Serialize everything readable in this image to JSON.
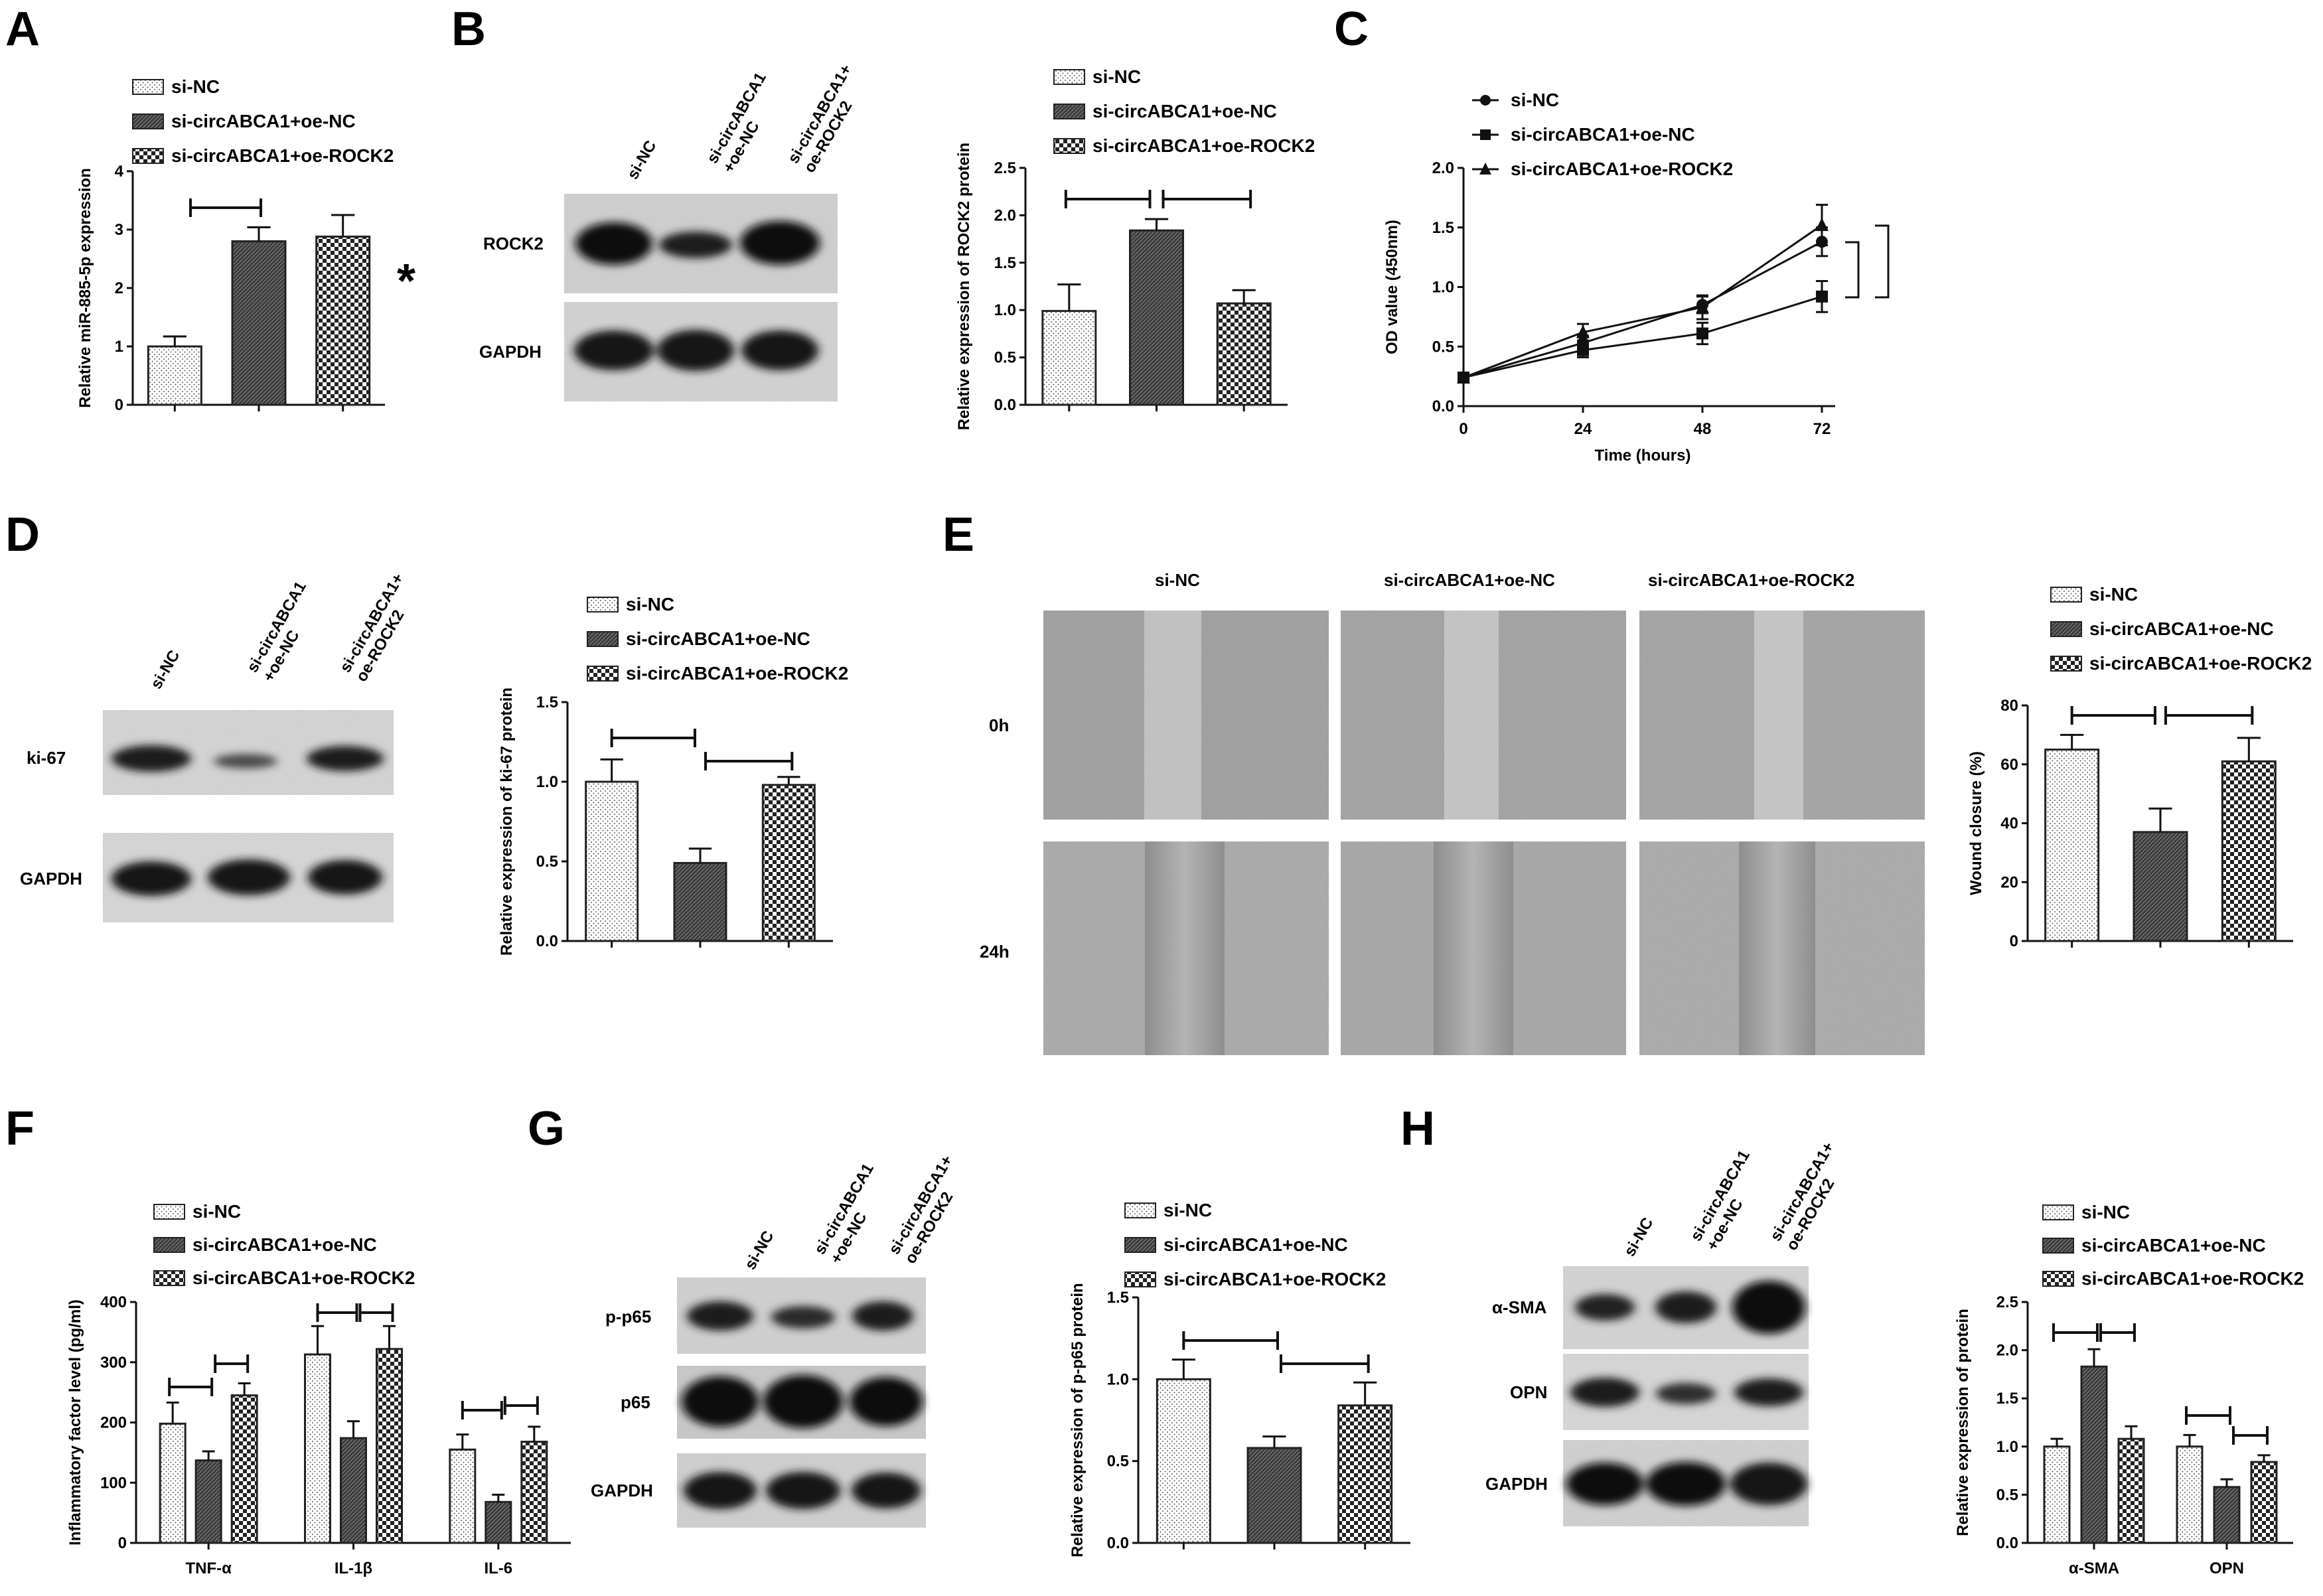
{
  "groups": [
    "si-NC",
    "si-circABCA1+oe-NC",
    "si-circABCA1+oe-ROCK2"
  ],
  "lane_labels": [
    "si-NC",
    "si-circABCA1\n+oe-NC",
    "si-circABCA1+\noe-ROCK2"
  ],
  "panels": {
    "A": {
      "letter": "A"
    },
    "B": {
      "letter": "B"
    },
    "C": {
      "letter": "C"
    },
    "D": {
      "letter": "D"
    },
    "E": {
      "letter": "E",
      "timepoints": [
        "0h",
        "24h"
      ]
    },
    "F": {
      "letter": "F"
    },
    "G": {
      "letter": "G"
    },
    "H": {
      "letter": "H"
    }
  },
  "blots": {
    "B": [
      "ROCK2",
      "GAPDH"
    ],
    "D": [
      "ki-67",
      "GAPDH"
    ],
    "G": [
      "p-p65",
      "p65",
      "GAPDH"
    ],
    "H": [
      "α-SMA",
      "OPN",
      "GAPDH"
    ]
  },
  "colors": {
    "bar_stroke": "#222222",
    "text": "#111111"
  },
  "chart_data": [
    {
      "id": "A",
      "type": "bar",
      "ylabel": "Relative miR-885-5p expression",
      "ylim": [
        0,
        4
      ],
      "yticks": [
        0,
        1,
        2,
        3,
        4
      ],
      "categories": [
        "si-NC",
        "si-circABCA1+oe-NC",
        "si-circABCA1+oe-ROCK2"
      ],
      "values": [
        1.0,
        2.8,
        2.88
      ],
      "errors": [
        0.17,
        0.24,
        0.37
      ],
      "annotations": [
        "*"
      ],
      "legend": "top-left"
    },
    {
      "id": "B",
      "type": "bar",
      "ylabel": "Relative expression of ROCK2 protein",
      "ylim": [
        0,
        2.5
      ],
      "yticks": [
        "0.0",
        "0.5",
        "1.0",
        "1.5",
        "2.0",
        "2.5"
      ],
      "categories": [
        "si-NC",
        "si-circABCA1+oe-NC",
        "si-circABCA1+oe-ROCK2"
      ],
      "values": [
        0.99,
        1.84,
        1.07
      ],
      "errors": [
        0.28,
        0.12,
        0.14
      ],
      "legend": "top"
    },
    {
      "id": "C",
      "type": "line",
      "xlabel": "Time (hours)",
      "ylabel": "OD value (450nm)",
      "x": [
        0,
        24,
        48,
        72
      ],
      "xticks": [
        "0",
        "24",
        "48",
        "72"
      ],
      "ylim": [
        0,
        2.0
      ],
      "yticks": [
        "0.0",
        "0.5",
        "1.0",
        "1.5",
        "2.0"
      ],
      "series": [
        {
          "name": "si-NC",
          "values": [
            0.24,
            0.53,
            0.85,
            1.38
          ],
          "errors": [
            0.04,
            0.06,
            0.07,
            0.12
          ]
        },
        {
          "name": "si-circABCA1+oe-NC",
          "values": [
            0.24,
            0.47,
            0.61,
            0.92
          ],
          "errors": [
            0.04,
            0.06,
            0.09,
            0.13
          ]
        },
        {
          "name": "si-circABCA1+oe-ROCK2",
          "values": [
            0.24,
            0.62,
            0.83,
            1.52
          ],
          "errors": [
            0.04,
            0.07,
            0.1,
            0.17
          ]
        }
      ],
      "legend": "top"
    },
    {
      "id": "D",
      "type": "bar",
      "ylabel": "Relative expression of ki-67 protein",
      "ylim": [
        0,
        1.5
      ],
      "yticks": [
        "0.0",
        "0.5",
        "1.0",
        "1.5"
      ],
      "categories": [
        "si-NC",
        "si-circABCA1+oe-NC",
        "si-circABCA1+oe-ROCK2"
      ],
      "values": [
        1.0,
        0.49,
        0.98
      ],
      "errors": [
        0.14,
        0.09,
        0.05
      ],
      "legend": "top"
    },
    {
      "id": "E",
      "type": "bar",
      "ylabel": "Wound closure (%)",
      "ylim": [
        0,
        80
      ],
      "yticks": [
        "0",
        "20",
        "40",
        "60",
        "80"
      ],
      "categories": [
        "si-NC",
        "si-circABCA1+oe-NC",
        "si-circABCA1+oe-ROCK2"
      ],
      "values": [
        65,
        37,
        61
      ],
      "errors": [
        5,
        8,
        8
      ],
      "legend": "top"
    },
    {
      "id": "F",
      "type": "bar",
      "ylabel": "Inflammatory factor level (pg/ml)",
      "ylim": [
        0,
        400
      ],
      "yticks": [
        "0",
        "100",
        "200",
        "300",
        "400"
      ],
      "categories": [
        "TNF-α",
        "IL-1β",
        "IL-6"
      ],
      "series": [
        {
          "name": "si-NC",
          "values": [
            198,
            313,
            155
          ],
          "errors": [
            35,
            47,
            25
          ]
        },
        {
          "name": "si-circABCA1+oe-NC",
          "values": [
            137,
            174,
            68
          ],
          "errors": [
            15,
            28,
            12
          ]
        },
        {
          "name": "si-circABCA1+oe-ROCK2",
          "values": [
            245,
            322,
            168
          ],
          "errors": [
            20,
            38,
            25
          ]
        }
      ],
      "legend": "top"
    },
    {
      "id": "G",
      "type": "bar",
      "ylabel": "Relative expression of p-p65 protein",
      "ylim": [
        0,
        1.5
      ],
      "yticks": [
        "0.0",
        "0.5",
        "1.0",
        "1.5"
      ],
      "categories": [
        "si-NC",
        "si-circABCA1+oe-NC",
        "si-circABCA1+oe-ROCK2"
      ],
      "values": [
        1.0,
        0.58,
        0.84
      ],
      "errors": [
        0.12,
        0.07,
        0.14
      ],
      "legend": "top"
    },
    {
      "id": "H",
      "type": "bar",
      "ylabel": "Relative expression of protein",
      "ylim": [
        0,
        2.5
      ],
      "yticks": [
        "0.0",
        "0.5",
        "1.0",
        "1.5",
        "2.0",
        "2.5"
      ],
      "categories": [
        "α-SMA",
        "OPN"
      ],
      "series": [
        {
          "name": "si-NC",
          "values": [
            1.0,
            1.0
          ],
          "errors": [
            0.08,
            0.12
          ]
        },
        {
          "name": "si-circABCA1+oe-NC",
          "values": [
            1.83,
            0.58
          ],
          "errors": [
            0.18,
            0.08
          ]
        },
        {
          "name": "si-circABCA1+oe-ROCK2",
          "values": [
            1.08,
            0.84
          ],
          "errors": [
            0.13,
            0.07
          ]
        }
      ],
      "legend": "top"
    }
  ]
}
